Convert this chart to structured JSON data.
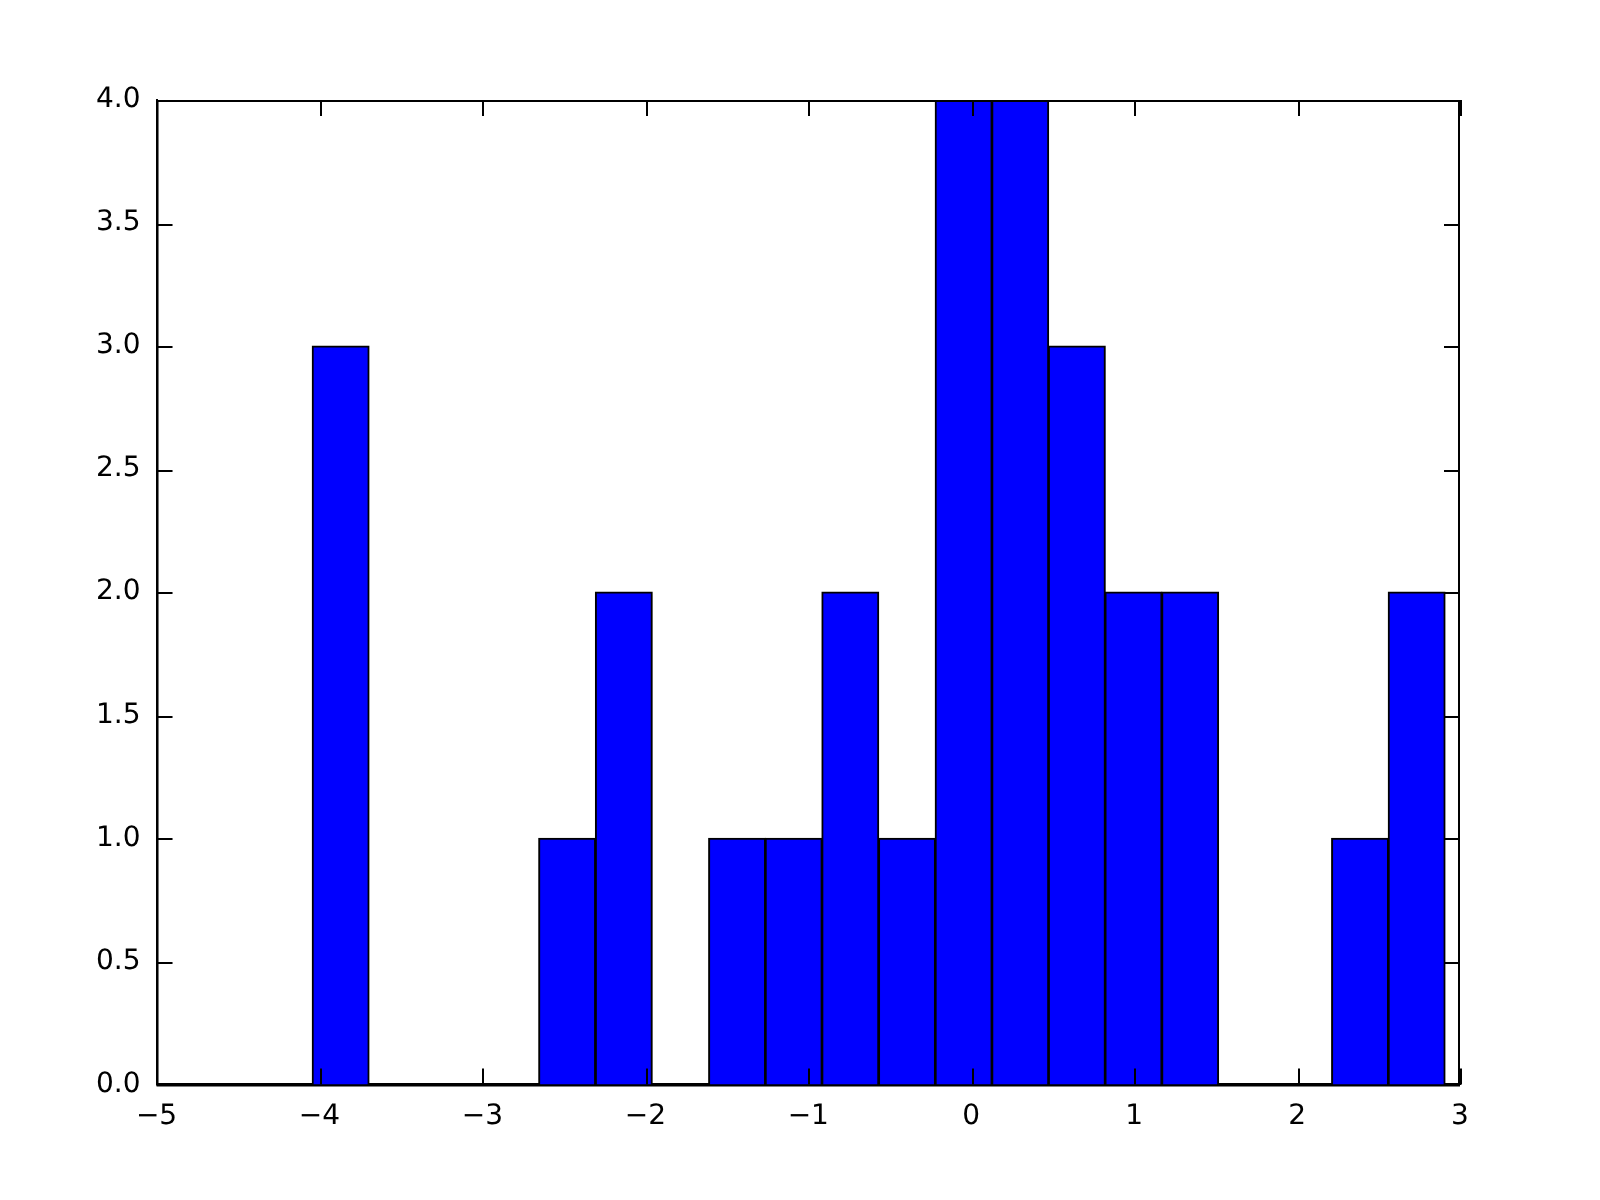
{
  "chart_data": {
    "type": "histogram",
    "bins": [
      -4.044,
      -3.696,
      -3.349,
      -3.001,
      -2.654,
      -2.306,
      -1.958,
      -1.611,
      -1.263,
      -0.916,
      -0.568,
      -0.22,
      0.127,
      0.475,
      0.822,
      1.17,
      1.518,
      1.865,
      2.213,
      2.56,
      2.908
    ],
    "values": [
      3,
      0,
      0,
      0,
      1,
      2,
      0,
      1,
      1,
      2,
      1,
      4,
      4,
      3,
      2,
      2,
      0,
      0,
      1,
      2
    ],
    "color": "#0000ff",
    "xlim": [
      -5,
      3
    ],
    "xticks": [
      {
        "value": -5,
        "label": "−5"
      },
      {
        "value": -4,
        "label": "−4"
      },
      {
        "value": -3,
        "label": "−3"
      },
      {
        "value": -2,
        "label": "−2"
      },
      {
        "value": -1,
        "label": "−1"
      },
      0,
      1,
      2,
      3
    ],
    "ylim": [
      0,
      4
    ],
    "yticks": [
      {
        "value": 0,
        "label": "0.0"
      },
      {
        "value": 0.5,
        "label": "0.5"
      },
      {
        "value": 1,
        "label": "1.0"
      },
      {
        "value": 1.5,
        "label": "1.5"
      },
      {
        "value": 2,
        "label": "2.0"
      },
      {
        "value": 2.5,
        "label": "2.5"
      },
      {
        "value": 3,
        "label": "3.0"
      },
      {
        "value": 3.5,
        "label": "3.5"
      },
      {
        "value": 4,
        "label": "4.0"
      }
    ],
    "grid": false,
    "legend": false
  }
}
